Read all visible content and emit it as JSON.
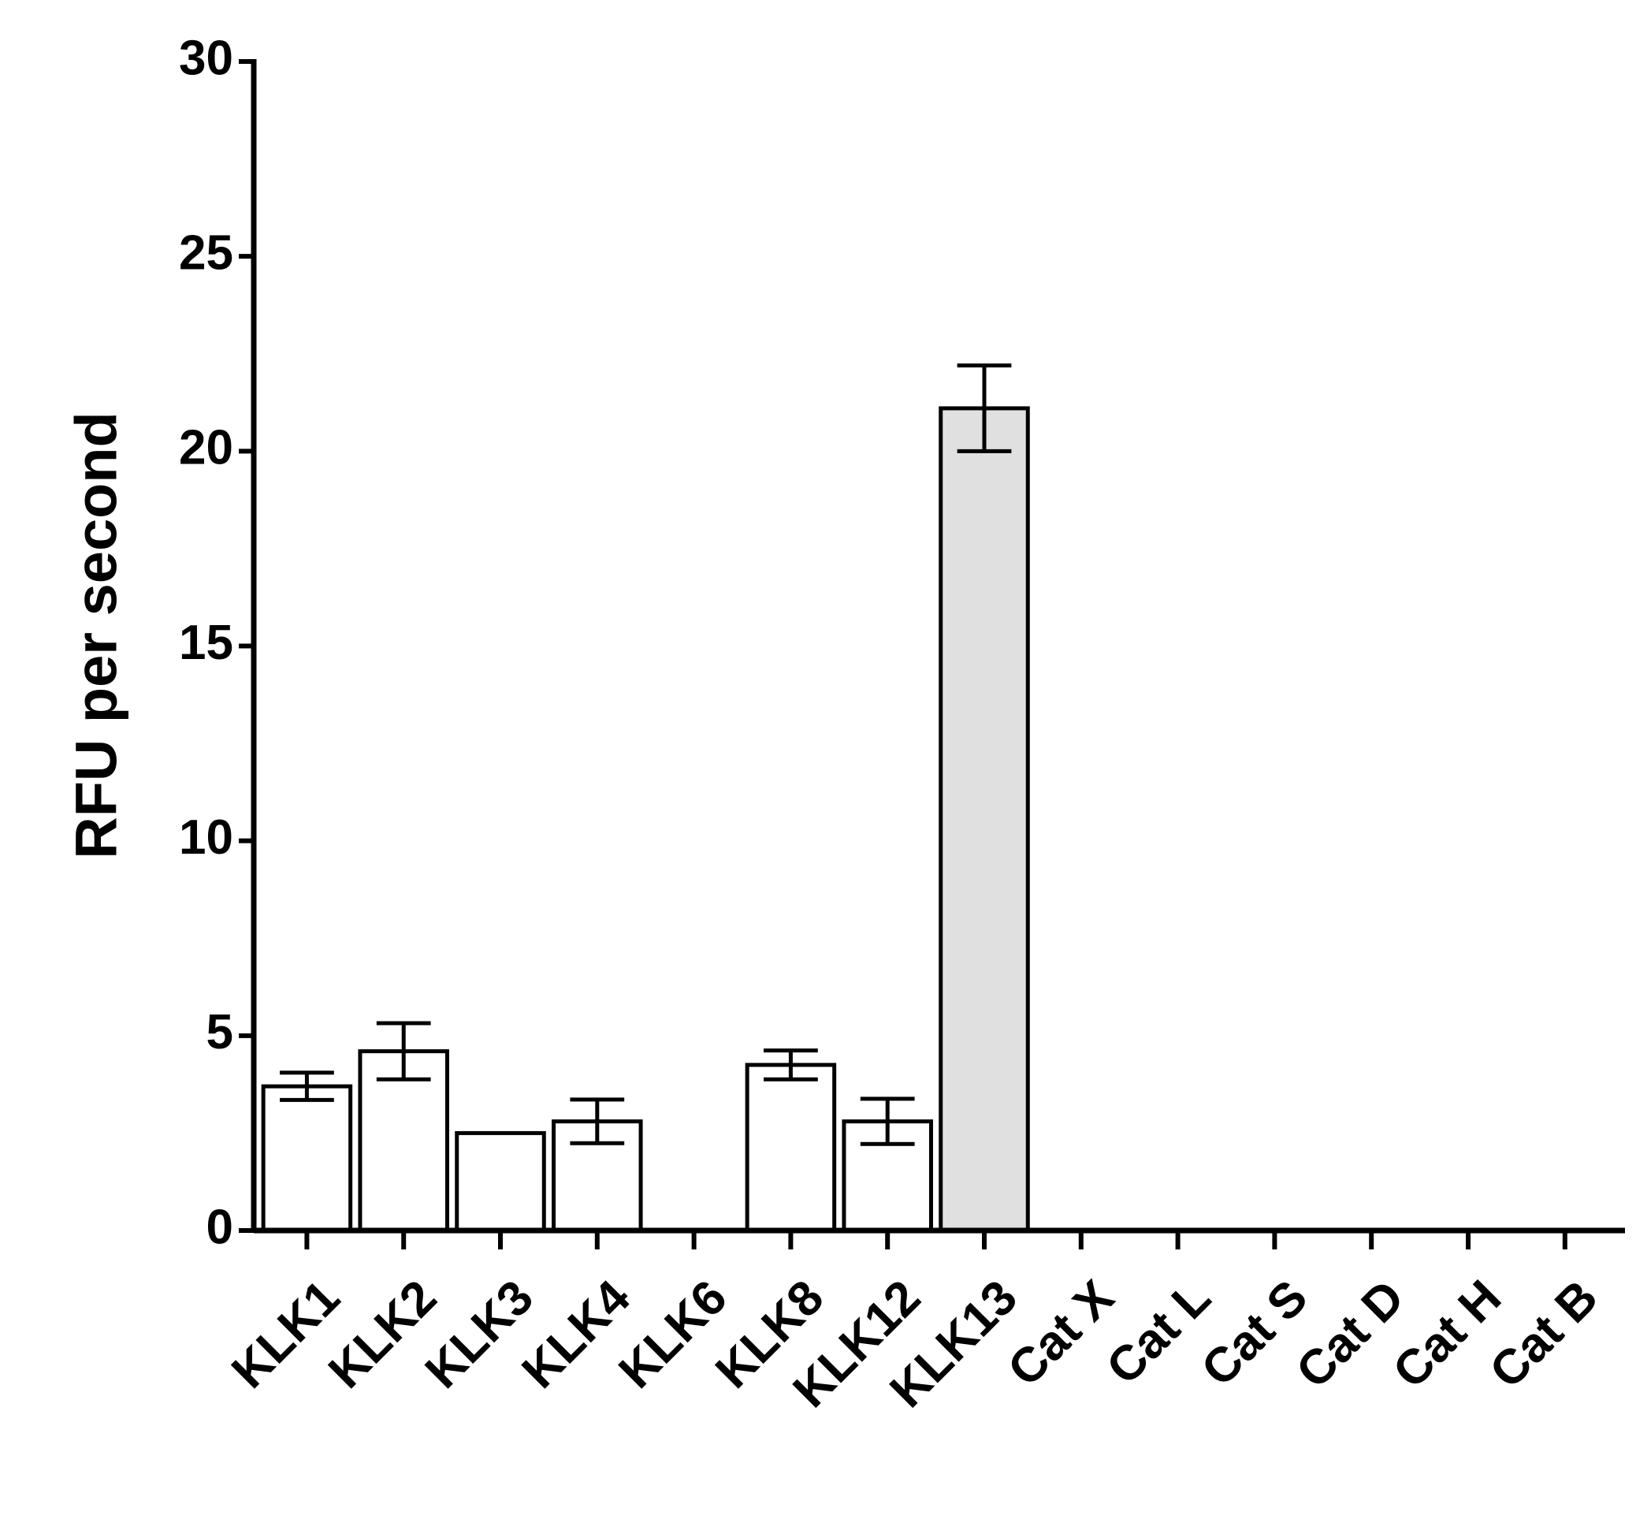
{
  "chart_data": {
    "type": "bar",
    "y_label": "RFU per second",
    "categories": [
      "KLK1",
      "KLK2",
      "KLK3",
      "KLK4",
      "KLK6",
      "KLK8",
      "KLK12",
      "KLK13",
      "Cat X",
      "Cat L",
      "Cat S",
      "Cat D",
      "Cat H",
      "Cat B"
    ],
    "values": [
      3.7,
      4.6,
      2.5,
      2.8,
      0,
      4.25,
      2.8,
      21.1,
      0,
      0,
      0,
      0,
      0,
      0
    ],
    "errors": [
      0.35,
      0.72,
      null,
      0.56,
      null,
      0.37,
      0.58,
      1.1,
      null,
      null,
      null,
      null,
      null,
      null
    ],
    "colors": [
      "#ffffff",
      "#ffffff",
      "#ffffff",
      "#ffffff",
      "#ffffff",
      "#ffffff",
      "#ffffff",
      "#e0e0e0",
      "#ffffff",
      "#ffffff",
      "#ffffff",
      "#ffffff",
      "#ffffff",
      "#ffffff"
    ],
    "ylim": [
      0,
      30
    ],
    "yticks": [
      0,
      5,
      10,
      15,
      20,
      25,
      30
    ],
    "grid": false
  }
}
